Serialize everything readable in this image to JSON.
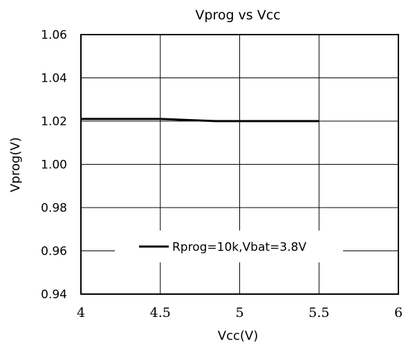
{
  "chart_data": {
    "type": "line",
    "title": "Vprog  vs  Vcc",
    "xlabel": "Vcc(V)",
    "ylabel": "Vprog(V)",
    "xlim": [
      4,
      6
    ],
    "ylim": [
      0.94,
      1.06
    ],
    "x_ticks": [
      4,
      4.5,
      5,
      5.5,
      6
    ],
    "x_tick_labels": [
      "4",
      "4.5",
      "5",
      "5.5",
      "6"
    ],
    "y_ticks": [
      0.94,
      0.96,
      0.98,
      1.0,
      1.02,
      1.04,
      1.06
    ],
    "y_tick_labels": [
      "0.94",
      "0.96",
      "0.98",
      "1.00",
      "1.02",
      "1.04",
      "1.06"
    ],
    "grid": true,
    "legend_position": "bottom-center",
    "series": [
      {
        "name": "Rprog=10k,Vbat=3.8V",
        "color": "#000000",
        "x": [
          4.0,
          4.5,
          4.85,
          5.0,
          5.5
        ],
        "y": [
          1.021,
          1.021,
          1.02,
          1.02,
          1.02
        ]
      }
    ]
  }
}
